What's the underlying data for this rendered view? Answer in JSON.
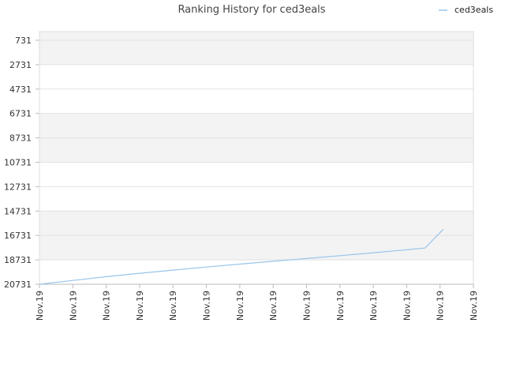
{
  "chart_data": {
    "type": "line",
    "title": "Ranking History for ced3eals",
    "xlabel": "",
    "ylabel": "",
    "y_inverted": true,
    "ylim": [
      731,
      20731
    ],
    "y_ticks": [
      "731",
      "2731",
      "4731",
      "6731",
      "8731",
      "10731",
      "12731",
      "14731",
      "16731",
      "18731",
      "20731"
    ],
    "x_ticks": [
      "Nov.19",
      "Nov.19",
      "Nov.19",
      "Nov.19",
      "Nov.19",
      "Nov.19",
      "Nov.19",
      "Nov.19",
      "Nov.19",
      "Nov.19",
      "Nov.19",
      "Nov.19",
      "Nov.19",
      "Nov.19"
    ],
    "grid": true,
    "legend_position": "top-right",
    "series": [
      {
        "name": "ced3eals",
        "color": "#99c5ea",
        "x": [
          0,
          1,
          2,
          3,
          4,
          5,
          6,
          7,
          8,
          9,
          10,
          11,
          11.55,
          12.1
        ],
        "values": [
          20731,
          20420,
          20110,
          19830,
          19570,
          19320,
          19080,
          18850,
          18620,
          18390,
          18150,
          17910,
          17760,
          16220
        ]
      }
    ]
  }
}
